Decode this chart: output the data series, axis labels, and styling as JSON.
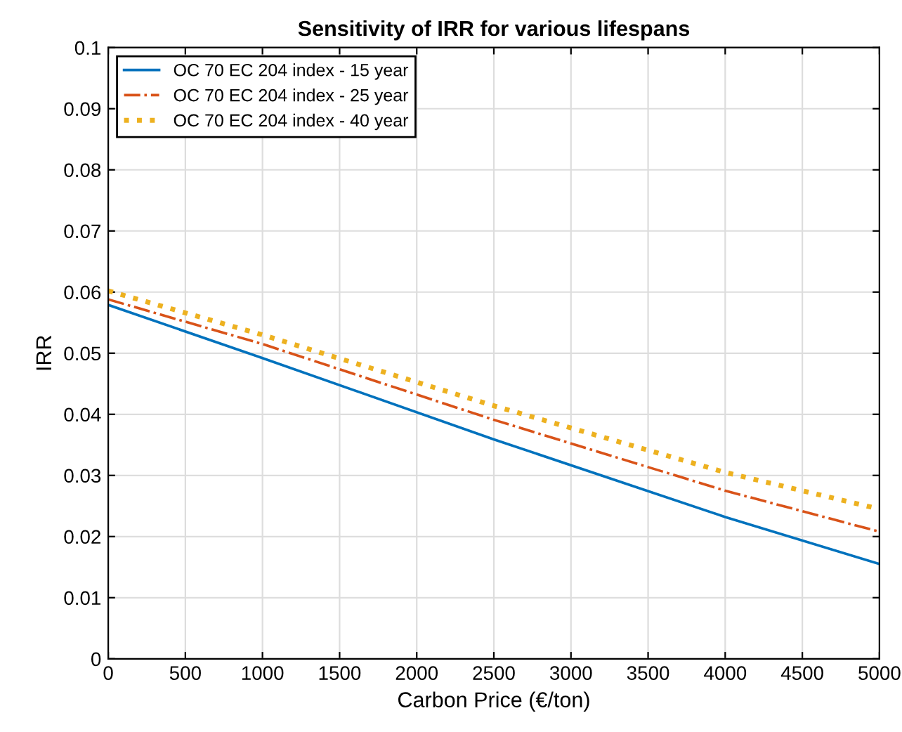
{
  "chart_data": {
    "type": "line",
    "title": "Sensitivity of IRR for various lifespans",
    "xlabel": "Carbon Price (€/ton)",
    "ylabel": "IRR",
    "series": [
      {
        "name": "OC 70 EC 204 index - 15 year",
        "color": "#0072bd",
        "line_style": "solid",
        "x": [
          0,
          1000,
          2500,
          4000,
          5000
        ],
        "values": [
          0.0579,
          0.0492,
          0.0359,
          0.0232,
          0.0155
        ]
      },
      {
        "name": "OC 70 EC 204 index - 25 year",
        "color": "#d95319",
        "line_style": "dashdot",
        "x": [
          0,
          1000,
          2500,
          4000,
          5000
        ],
        "values": [
          0.0588,
          0.0515,
          0.0391,
          0.0275,
          0.0208
        ]
      },
      {
        "name": "OC 70 EC 204 index - 40 year",
        "color": "#edb120",
        "line_style": "dotted",
        "x": [
          0,
          1000,
          2500,
          4000,
          5000
        ],
        "values": [
          0.0602,
          0.053,
          0.0414,
          0.0305,
          0.0245
        ]
      }
    ],
    "xlim": [
      0,
      5000
    ],
    "xticks": [
      0,
      500,
      1000,
      1500,
      2000,
      2500,
      3000,
      3500,
      4000,
      4500,
      5000
    ],
    "ylim": [
      0,
      0.1
    ],
    "yticks": [
      0,
      0.01,
      0.02,
      0.03,
      0.04,
      0.05,
      0.06,
      0.07,
      0.08,
      0.09,
      0.1
    ],
    "grid": true,
    "legend": "top left"
  }
}
